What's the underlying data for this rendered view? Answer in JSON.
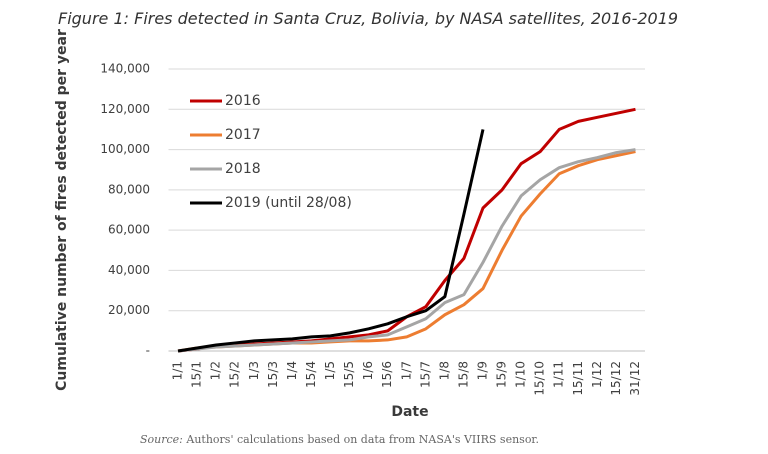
{
  "chart_data": {
    "type": "line",
    "title": "Figure 1: Fires detected in Santa Cruz, Bolivia, by NASA satellites, 2016-2019",
    "x_label": "Date",
    "y_label": "Cumulative number of fires detected per year",
    "source_label": "Source:",
    "source_text": "Authors' calculations based on data from NASA's VIIRS sensor.",
    "categories": [
      "1/1",
      "15/1",
      "1/2",
      "15/2",
      "1/3",
      "15/3",
      "1/4",
      "15/4",
      "1/5",
      "15/5",
      "1/6",
      "15/6",
      "1/7",
      "15/7",
      "1/8",
      "15/8",
      "1/9",
      "15/9",
      "1/10",
      "15/10",
      "1/11",
      "15/11",
      "1/12",
      "15/12",
      "31/12"
    ],
    "series": [
      {
        "name": "2016",
        "color": "#c00000",
        "values": [
          0,
          1000,
          2500,
          3000,
          3500,
          4000,
          4500,
          5000,
          6000,
          7000,
          8000,
          10000,
          17000,
          22000,
          35000,
          46000,
          71000,
          80000,
          93000,
          99000,
          110000,
          114000,
          116000,
          118000,
          120000
        ]
      },
      {
        "name": "2017",
        "color": "#ed7d31",
        "values": [
          0,
          1500,
          2000,
          2500,
          3000,
          3500,
          4000,
          4000,
          4500,
          5000,
          5000,
          5500,
          7000,
          11000,
          18000,
          23000,
          31000,
          50000,
          67000,
          78000,
          88000,
          92000,
          95000,
          97000,
          99000
        ]
      },
      {
        "name": "2018",
        "color": "#a5a5a5",
        "values": [
          0,
          1000,
          2000,
          2500,
          3000,
          3500,
          4000,
          4500,
          5000,
          5500,
          7000,
          8000,
          12000,
          16000,
          24000,
          28000,
          44000,
          62000,
          77000,
          85000,
          91000,
          94000,
          96000,
          98500,
          100000
        ]
      },
      {
        "name": "2019 (until 28/08)",
        "color": "#000000",
        "values": [
          0,
          1500,
          3000,
          4000,
          5000,
          5500,
          6000,
          7000,
          7500,
          9000,
          11000,
          13500,
          17000,
          20000,
          27000,
          68000,
          110000,
          null,
          null,
          null,
          null,
          null,
          null,
          null,
          null
        ]
      }
    ],
    "ylim": [
      0,
      140000
    ],
    "yticks": [
      {
        "value": 0,
        "label": "-"
      },
      {
        "value": 20000,
        "label": "20,000"
      },
      {
        "value": 40000,
        "label": "40,000"
      },
      {
        "value": 60000,
        "label": "60,000"
      },
      {
        "value": 80000,
        "label": "80,000"
      },
      {
        "value": 100000,
        "label": "100,000"
      },
      {
        "value": 120000,
        "label": "120,000"
      },
      {
        "value": 140000,
        "label": "140,000"
      }
    ],
    "grid": true,
    "legend": "upper left"
  }
}
